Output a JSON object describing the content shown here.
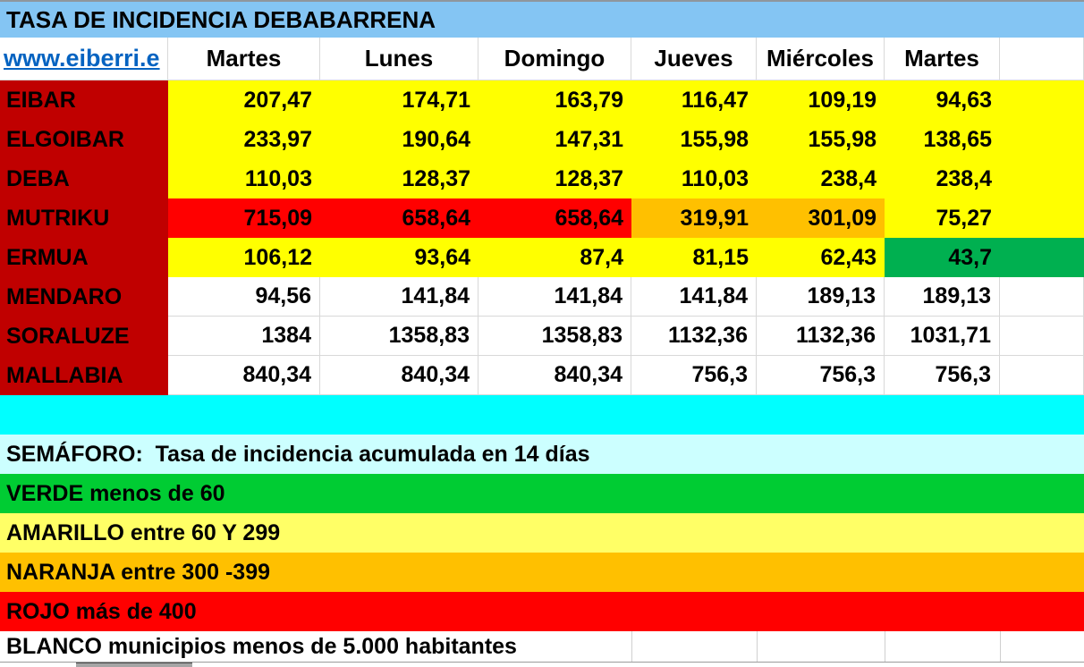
{
  "title": "TASA DE INCIDENCIA DEBABARRENA",
  "link_text": "www.eiberri.e",
  "columns": [
    "Martes",
    "Lunes",
    "Domingo",
    "Jueves",
    "Miércoles",
    "Martes"
  ],
  "rows": [
    {
      "name": "EIBAR",
      "values": [
        "207,47",
        "174,71",
        "163,79",
        "116,47",
        "109,19",
        "94,63"
      ],
      "cell_colors": [
        "yellow",
        "yellow",
        "yellow",
        "yellow",
        "yellow",
        "yellow"
      ]
    },
    {
      "name": "ELGOIBAR",
      "values": [
        "233,97",
        "190,64",
        "147,31",
        "155,98",
        "155,98",
        "138,65"
      ],
      "cell_colors": [
        "yellow",
        "yellow",
        "yellow",
        "yellow",
        "yellow",
        "yellow"
      ]
    },
    {
      "name": "DEBA",
      "values": [
        "110,03",
        "128,37",
        "128,37",
        "110,03",
        "238,4",
        "238,4"
      ],
      "cell_colors": [
        "yellow",
        "yellow",
        "yellow",
        "yellow",
        "yellow",
        "yellow"
      ]
    },
    {
      "name": "MUTRIKU",
      "values": [
        "715,09",
        "658,64",
        "658,64",
        "319,91",
        "301,09",
        "75,27"
      ],
      "cell_colors": [
        "red",
        "red",
        "red",
        "orange",
        "orange",
        "yellow"
      ]
    },
    {
      "name": "ERMUA",
      "values": [
        "106,12",
        "93,64",
        "87,4",
        "81,15",
        "62,43",
        "43,7"
      ],
      "cell_colors": [
        "yellow",
        "yellow",
        "yellow",
        "yellow",
        "yellow",
        "green"
      ]
    },
    {
      "name": "MENDARO",
      "values": [
        "94,56",
        "141,84",
        "141,84",
        "141,84",
        "189,13",
        "189,13"
      ],
      "cell_colors": [
        "white",
        "white",
        "white",
        "white",
        "white",
        "white"
      ]
    },
    {
      "name": "SORALUZE",
      "values": [
        "1384",
        "1358,83",
        "1358,83",
        "1132,36",
        "1132,36",
        "1031,71"
      ],
      "cell_colors": [
        "white",
        "white",
        "white",
        "white",
        "white",
        "white"
      ]
    },
    {
      "name": "MALLABIA",
      "values": [
        "840,34",
        "840,34",
        "840,34",
        "756,3",
        "756,3",
        "756,3"
      ],
      "cell_colors": [
        "white",
        "white",
        "white",
        "white",
        "white",
        "white"
      ]
    }
  ],
  "legend": {
    "heading": "SEMÁFORO:  Tasa de incidencia acumulada en 14 días",
    "entries": [
      {
        "label": "VERDE menos de 60",
        "color_key": "legend_green"
      },
      {
        "label": "AMARILLO entre 60 Y 299",
        "color_key": "legend_yellow"
      },
      {
        "label": "NARANJA entre 300 -399",
        "color_key": "orange"
      },
      {
        "label": "ROJO más de 400",
        "color_key": "red"
      },
      {
        "label": "BLANCO municipios menos de 5.000 habitantes",
        "color_key": "white"
      }
    ]
  },
  "colors": {
    "title_bar": "#84C5F3",
    "label_column": "#C00000",
    "yellow": "#FFFF00",
    "red": "#FF0000",
    "orange": "#FFC000",
    "green": "#00B050",
    "white": "#FFFFFF",
    "legend_green": "#00CC33",
    "legend_yellow": "#FFFF66",
    "cyan_strip": "#00FFFF",
    "legend_heading_bg": "#CCFFFF",
    "link_blue": "#0563C1"
  }
}
